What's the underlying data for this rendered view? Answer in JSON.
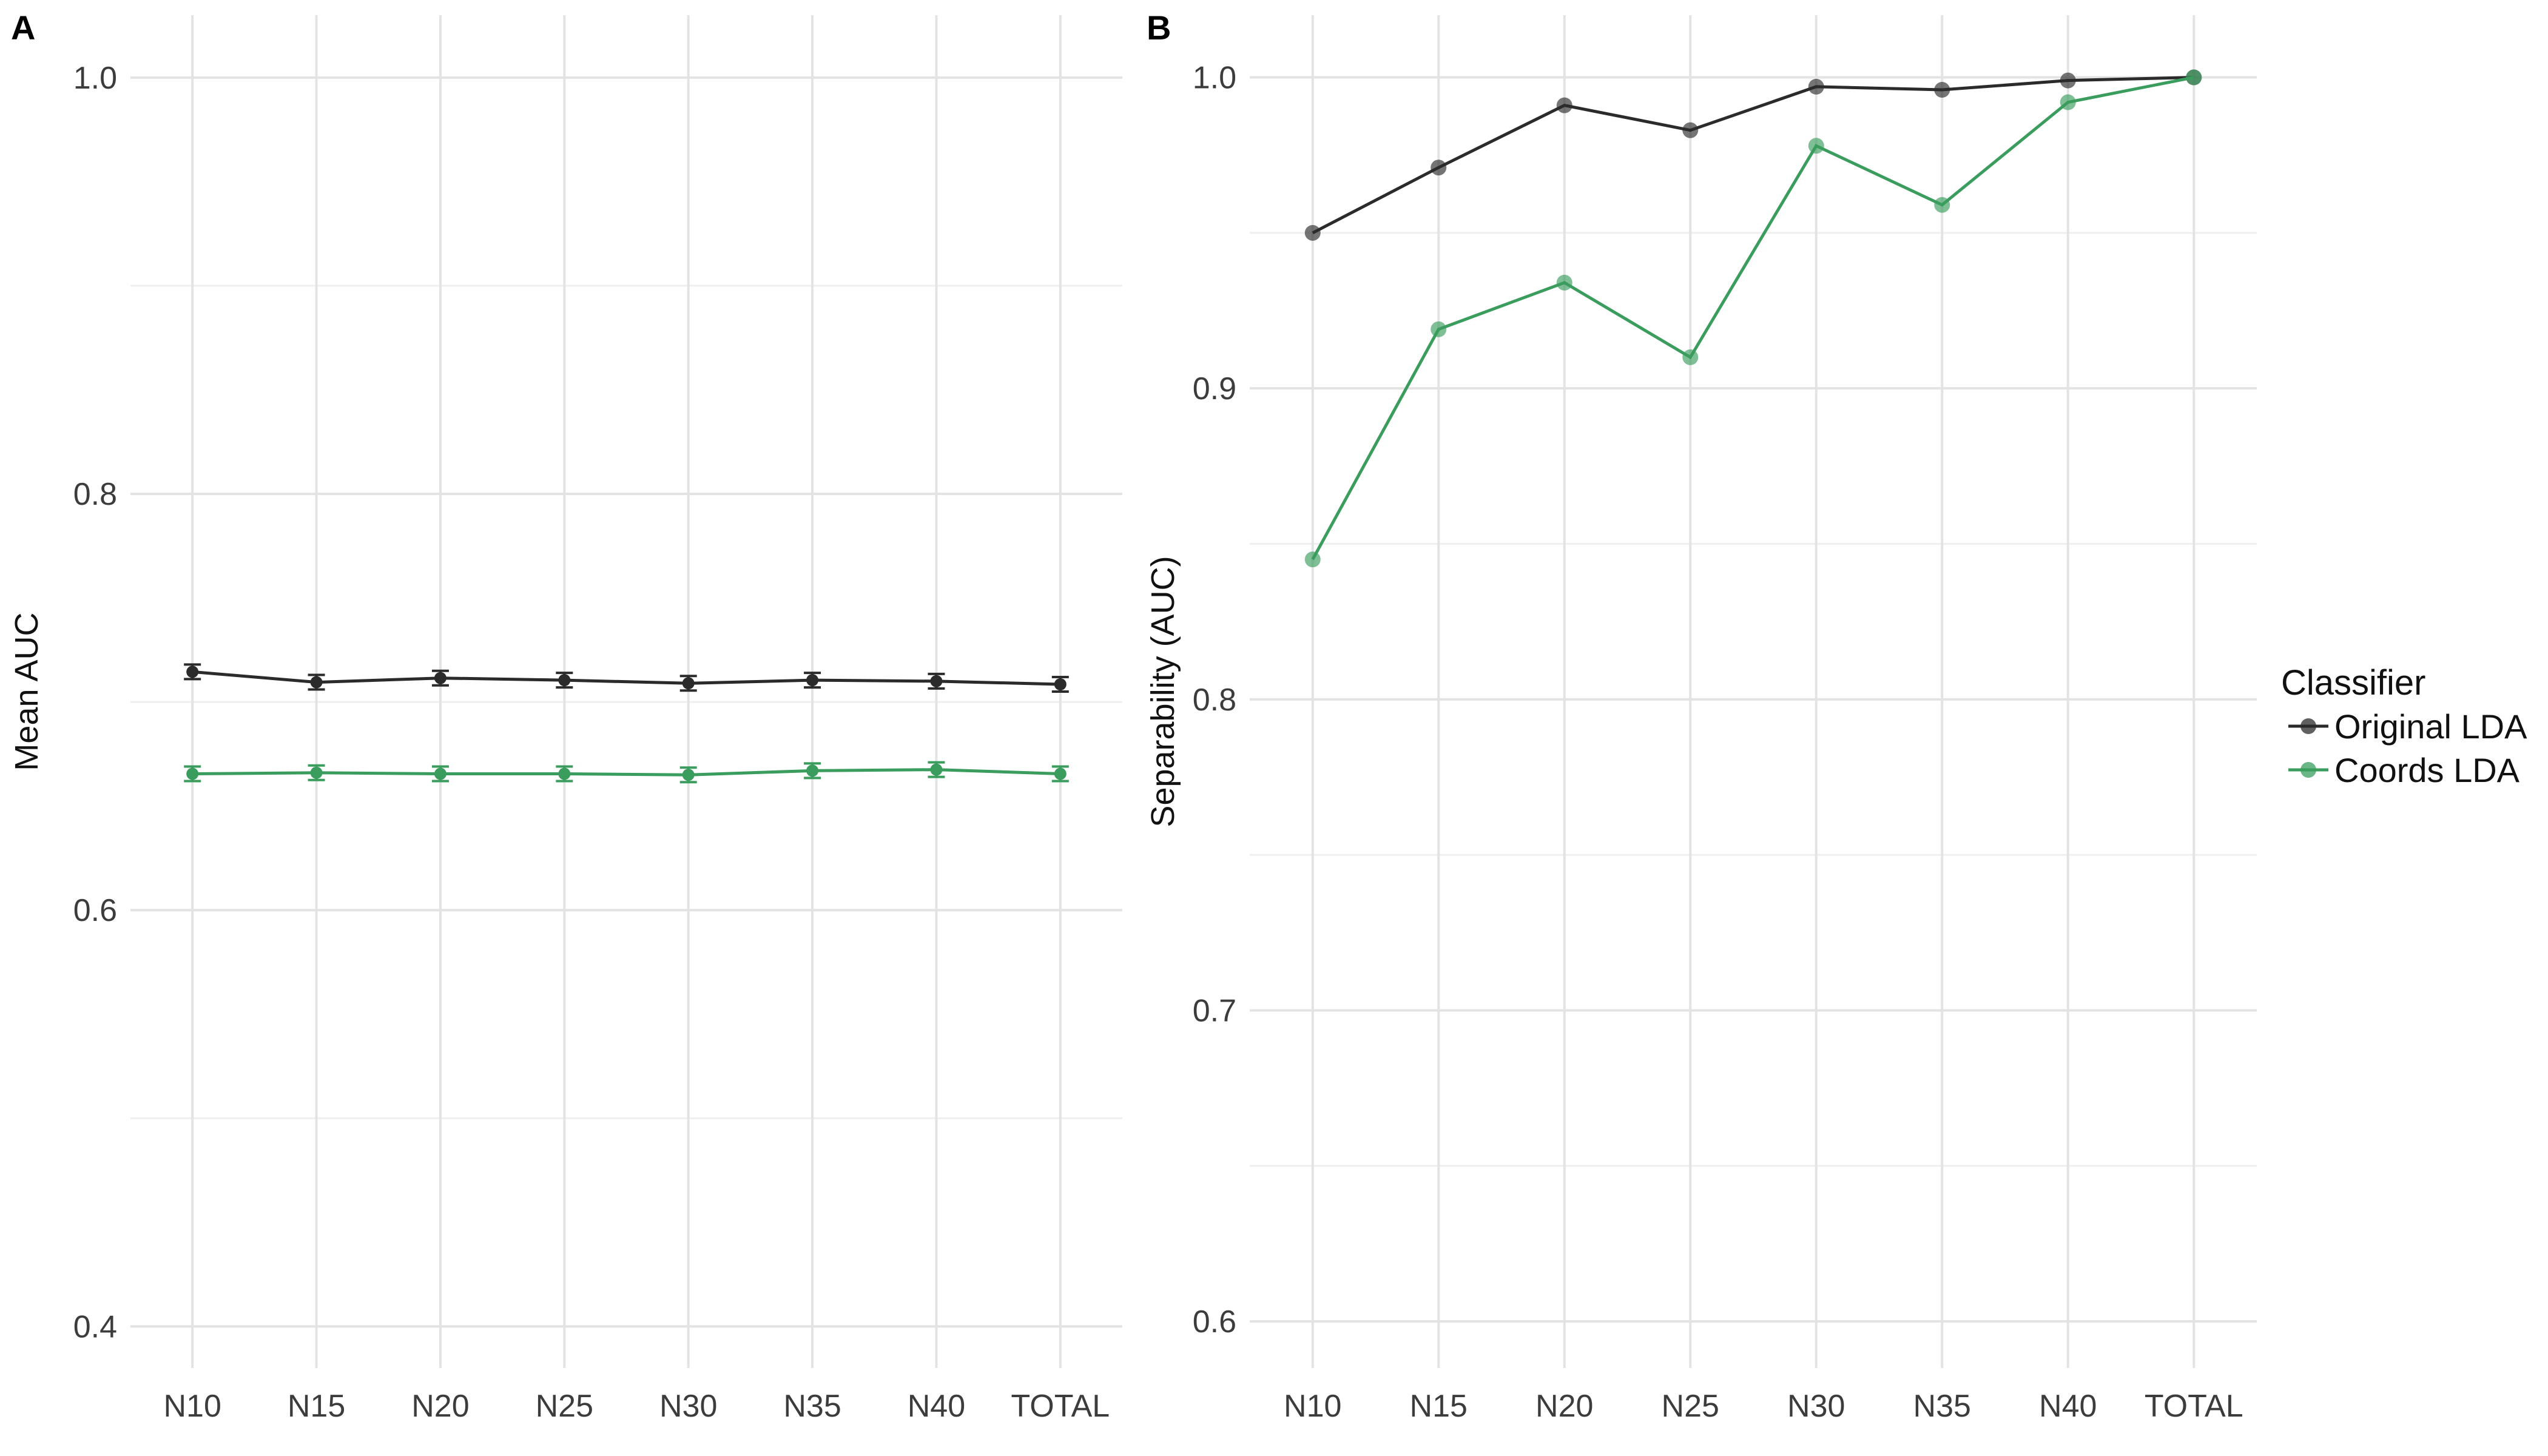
{
  "chart_data": [
    {
      "panel": "A",
      "type": "line",
      "ylabel": "Mean AUC",
      "ylim": [
        0.38,
        1.03
      ],
      "yticks": [
        0.4,
        0.6,
        0.8,
        1.0
      ],
      "ytick_labels": [
        "0.4",
        "0.6",
        "0.8",
        "1.0"
      ],
      "categories": [
        "N10",
        "N15",
        "N20",
        "N25",
        "N30",
        "N35",
        "N40",
        "TOTAL"
      ],
      "error_bars": true,
      "series": [
        {
          "name": "Original LDA",
          "color": "#2b2b2b",
          "values": [
            0.7145,
            0.7095,
            0.7115,
            0.7105,
            0.709,
            0.7105,
            0.71,
            0.7085
          ]
        },
        {
          "name": "Coords LDA",
          "color": "#3a9d5d",
          "values": [
            0.6655,
            0.666,
            0.6655,
            0.6655,
            0.665,
            0.667,
            0.6675,
            0.6655
          ]
        }
      ],
      "grid": true
    },
    {
      "panel": "B",
      "type": "line",
      "ylabel": "Separability (AUC)",
      "ylim": [
        0.585,
        1.02
      ],
      "yticks": [
        0.6,
        0.7,
        0.8,
        0.9,
        1.0
      ],
      "ytick_labels": [
        "0.6",
        "0.7",
        "0.8",
        "0.9",
        "1.0"
      ],
      "categories": [
        "N10",
        "N15",
        "N20",
        "N25",
        "N30",
        "N35",
        "N40",
        "TOTAL"
      ],
      "error_bars": false,
      "series": [
        {
          "name": "Original LDA",
          "color": "#2b2b2b",
          "values": [
            0.95,
            0.971,
            0.991,
            0.983,
            0.997,
            0.996,
            0.999,
            1.0
          ]
        },
        {
          "name": "Coords LDA",
          "color": "#3a9d5d",
          "values": [
            0.845,
            0.919,
            0.934,
            0.91,
            0.978,
            0.959,
            0.992,
            1.0
          ]
        }
      ],
      "grid": true
    }
  ],
  "legend": {
    "title": "Classifier",
    "position": "right",
    "items": [
      {
        "label": "Original LDA",
        "color": "#2b2b2b"
      },
      {
        "label": "Coords LDA",
        "color": "#3a9d5d"
      }
    ]
  }
}
